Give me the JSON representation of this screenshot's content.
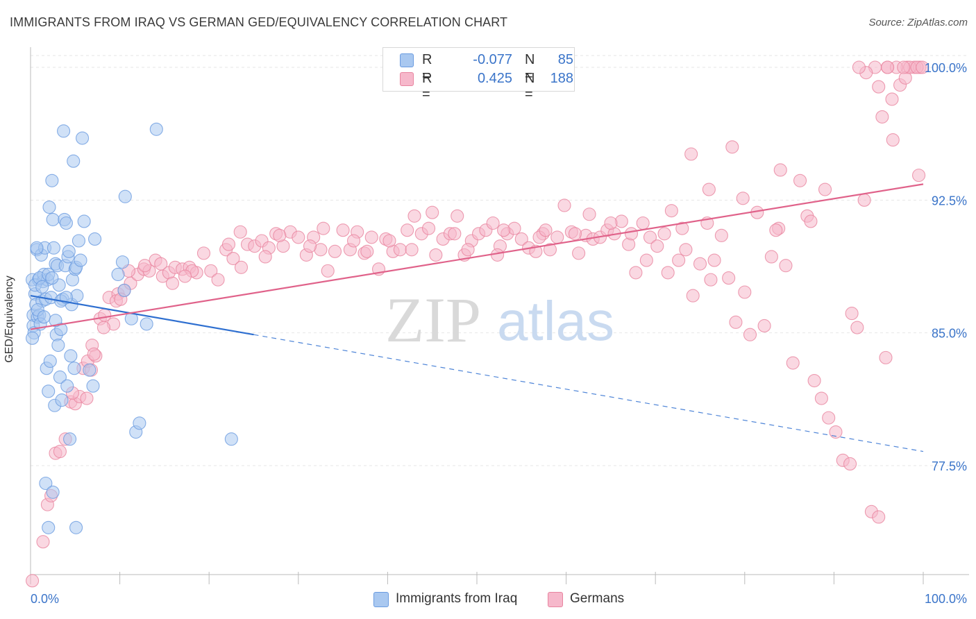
{
  "header": {
    "title": "IMMIGRANTS FROM IRAQ VS GERMAN GED/EQUIVALENCY CORRELATION CHART",
    "source": "Source: ZipAtlas.com"
  },
  "watermark": {
    "part1": "ZIP",
    "part2": "atlas"
  },
  "legend": {
    "rows": [
      {
        "r_label": "R =",
        "r_value": "-0.077",
        "n_label": "N =",
        "n_value": "85",
        "color": "#a9c8f0"
      },
      {
        "r_label": "R =",
        "r_value": "0.425",
        "n_label": "N =",
        "n_value": "188",
        "color": "#f6b8cb"
      }
    ]
  },
  "bottom_legend": [
    {
      "label": "Immigrants from Iraq",
      "color": "#a9c8f0"
    },
    {
      "label": "Germans",
      "color": "#f6b8cb"
    }
  ],
  "colors": {
    "blue_fill": "#a9c8f0",
    "blue_stroke": "#6a9be0",
    "blue_line": "#2e6fd0",
    "pink_fill": "#f6b8cb",
    "pink_stroke": "#e8849f",
    "pink_line": "#e0628a",
    "tick_label": "#3a74c9",
    "grid": "#e6e6e6"
  },
  "chart_data": {
    "type": "scatter",
    "title": "IMMIGRANTS FROM IRAQ VS GERMAN GED/EQUIVALENCY CORRELATION CHART",
    "xlabel": "",
    "ylabel": "GED/Equivalency",
    "xlim": [
      0,
      100
    ],
    "ylim": [
      70.0,
      100.5
    ],
    "x_tick_labels": [
      "0.0%",
      "100.0%"
    ],
    "y_ticks": [
      77.5,
      85.0,
      92.5,
      100.0
    ],
    "y_tick_labels": [
      "77.5%",
      "85.0%",
      "92.5%",
      "100.0%"
    ],
    "grid": true,
    "legend_position": "top-center",
    "series": [
      {
        "name": "Immigrants from Iraq",
        "points": [
          [
            0.2,
            88.0
          ],
          [
            0.3,
            86.0
          ],
          [
            0.3,
            85.4
          ],
          [
            0.4,
            85.0
          ],
          [
            0.5,
            87.2
          ],
          [
            0.6,
            86.6
          ],
          [
            0.7,
            89.7
          ],
          [
            0.8,
            85.9
          ],
          [
            0.9,
            88.0
          ],
          [
            1.0,
            86.0
          ],
          [
            1.1,
            85.5
          ],
          [
            1.2,
            89.4
          ],
          [
            1.3,
            86.8
          ],
          [
            1.4,
            87.9
          ],
          [
            1.5,
            88.3
          ],
          [
            1.6,
            89.8
          ],
          [
            1.7,
            86.9
          ],
          [
            1.8,
            83.0
          ],
          [
            1.9,
            88.0
          ],
          [
            2.0,
            81.7
          ],
          [
            2.1,
            92.1
          ],
          [
            2.2,
            83.4
          ],
          [
            2.3,
            87.0
          ],
          [
            2.4,
            93.6
          ],
          [
            2.5,
            91.4
          ],
          [
            2.6,
            89.8
          ],
          [
            2.7,
            80.9
          ],
          [
            2.8,
            88.9
          ],
          [
            2.9,
            84.9
          ],
          [
            3.0,
            88.8
          ],
          [
            3.1,
            84.3
          ],
          [
            3.3,
            82.5
          ],
          [
            3.4,
            85.2
          ],
          [
            3.5,
            81.2
          ],
          [
            3.6,
            86.9
          ],
          [
            3.7,
            96.4
          ],
          [
            3.8,
            91.4
          ],
          [
            3.9,
            88.8
          ],
          [
            4.0,
            91.2
          ],
          [
            4.1,
            82.0
          ],
          [
            4.2,
            89.3
          ],
          [
            4.3,
            89.6
          ],
          [
            4.4,
            79.0
          ],
          [
            4.5,
            83.7
          ],
          [
            4.6,
            86.6
          ],
          [
            4.7,
            88.0
          ],
          [
            4.8,
            94.7
          ],
          [
            4.9,
            83.0
          ],
          [
            5.0,
            88.6
          ],
          [
            5.1,
            88.7
          ],
          [
            5.2,
            87.1
          ],
          [
            5.4,
            90.2
          ],
          [
            5.6,
            89.1
          ],
          [
            5.8,
            96.0
          ],
          [
            6.0,
            91.3
          ],
          [
            6.6,
            82.9
          ],
          [
            7.0,
            82.0
          ],
          [
            7.2,
            90.3
          ],
          [
            9.8,
            88.3
          ],
          [
            10.3,
            89.0
          ],
          [
            10.5,
            87.4
          ],
          [
            10.6,
            92.7
          ],
          [
            11.3,
            85.8
          ],
          [
            11.8,
            79.4
          ],
          [
            12.2,
            79.9
          ],
          [
            13.0,
            85.5
          ],
          [
            14.1,
            96.5
          ],
          [
            22.5,
            79.0
          ],
          [
            1.7,
            76.5
          ],
          [
            2.5,
            76.0
          ],
          [
            2.0,
            74.0
          ],
          [
            5.1,
            74.0
          ],
          [
            0.5,
            87.7
          ],
          [
            1.0,
            88.1
          ],
          [
            1.3,
            87.6
          ],
          [
            0.8,
            86.3
          ],
          [
            2.8,
            85.7
          ],
          [
            3.2,
            87.7
          ],
          [
            0.2,
            84.7
          ],
          [
            3.4,
            86.8
          ],
          [
            2.0,
            88.3
          ],
          [
            1.5,
            85.9
          ],
          [
            0.7,
            89.8
          ],
          [
            4.0,
            87.0
          ],
          [
            2.4,
            88.1
          ]
        ]
      },
      {
        "name": "Germans",
        "points": [
          [
            0.2,
            71.0
          ],
          [
            0.8,
            70.9
          ],
          [
            1.4,
            73.2
          ],
          [
            1.9,
            75.3
          ],
          [
            2.3,
            75.8
          ],
          [
            2.8,
            78.2
          ],
          [
            3.3,
            78.3
          ],
          [
            3.9,
            79.0
          ],
          [
            4.5,
            81.1
          ],
          [
            5.0,
            81.0
          ],
          [
            5.5,
            81.4
          ],
          [
            5.9,
            83.0
          ],
          [
            6.4,
            83.4
          ],
          [
            6.9,
            84.3
          ],
          [
            7.3,
            83.7
          ],
          [
            7.8,
            85.8
          ],
          [
            8.3,
            86.0
          ],
          [
            8.8,
            87.0
          ],
          [
            9.3,
            85.5
          ],
          [
            9.8,
            87.2
          ],
          [
            10.5,
            87.4
          ],
          [
            11.2,
            87.8
          ],
          [
            12.0,
            88.3
          ],
          [
            12.7,
            88.6
          ],
          [
            13.3,
            88.5
          ],
          [
            14.0,
            89.1
          ],
          [
            14.8,
            88.2
          ],
          [
            15.5,
            88.4
          ],
          [
            16.2,
            88.7
          ],
          [
            17.0,
            88.6
          ],
          [
            17.8,
            88.7
          ],
          [
            18.6,
            88.4
          ],
          [
            19.4,
            89.5
          ],
          [
            20.2,
            88.5
          ],
          [
            21.0,
            88.0
          ],
          [
            21.9,
            89.7
          ],
          [
            22.7,
            89.2
          ],
          [
            23.5,
            90.7
          ],
          [
            24.3,
            90.0
          ],
          [
            25.1,
            89.9
          ],
          [
            25.9,
            90.2
          ],
          [
            26.7,
            89.8
          ],
          [
            27.5,
            90.6
          ],
          [
            28.3,
            89.9
          ],
          [
            29.1,
            90.7
          ],
          [
            30.0,
            90.4
          ],
          [
            30.9,
            89.4
          ],
          [
            31.7,
            90.4
          ],
          [
            32.5,
            89.7
          ],
          [
            33.3,
            88.5
          ],
          [
            34.1,
            89.6
          ],
          [
            35.0,
            90.8
          ],
          [
            35.8,
            89.7
          ],
          [
            36.6,
            90.7
          ],
          [
            37.4,
            89.5
          ],
          [
            38.2,
            90.4
          ],
          [
            39.0,
            88.6
          ],
          [
            39.8,
            90.3
          ],
          [
            40.6,
            89.6
          ],
          [
            41.4,
            89.7
          ],
          [
            42.2,
            90.8
          ],
          [
            43.0,
            91.6
          ],
          [
            43.8,
            90.6
          ],
          [
            44.6,
            90.9
          ],
          [
            45.4,
            89.4
          ],
          [
            46.2,
            90.3
          ],
          [
            47.0,
            90.6
          ],
          [
            47.8,
            91.6
          ],
          [
            48.6,
            89.4
          ],
          [
            49.4,
            90.2
          ],
          [
            50.2,
            90.6
          ],
          [
            51.0,
            90.8
          ],
          [
            51.8,
            91.2
          ],
          [
            52.6,
            89.9
          ],
          [
            53.4,
            90.6
          ],
          [
            54.2,
            90.9
          ],
          [
            55.0,
            90.3
          ],
          [
            55.8,
            89.8
          ],
          [
            56.6,
            89.6
          ],
          [
            57.4,
            90.6
          ],
          [
            58.2,
            89.7
          ],
          [
            59.0,
            90.4
          ],
          [
            59.8,
            92.2
          ],
          [
            60.6,
            90.7
          ],
          [
            61.4,
            89.5
          ],
          [
            62.2,
            90.5
          ],
          [
            63.0,
            90.3
          ],
          [
            63.8,
            90.4
          ],
          [
            64.6,
            90.8
          ],
          [
            65.4,
            90.6
          ],
          [
            66.2,
            91.3
          ],
          [
            67.0,
            90.0
          ],
          [
            67.8,
            88.4
          ],
          [
            68.6,
            91.2
          ],
          [
            69.4,
            90.4
          ],
          [
            70.2,
            89.9
          ],
          [
            71.0,
            90.6
          ],
          [
            71.8,
            91.9
          ],
          [
            72.6,
            89.1
          ],
          [
            73.4,
            89.7
          ],
          [
            74.2,
            87.1
          ],
          [
            75.0,
            88.9
          ],
          [
            75.8,
            91.2
          ],
          [
            76.6,
            89.1
          ],
          [
            77.4,
            90.5
          ],
          [
            78.2,
            88.1
          ],
          [
            79.0,
            85.6
          ],
          [
            79.8,
            92.6
          ],
          [
            80.6,
            84.9
          ],
          [
            81.4,
            91.8
          ],
          [
            82.2,
            85.4
          ],
          [
            83.0,
            89.3
          ],
          [
            83.8,
            90.9
          ],
          [
            84.6,
            88.8
          ],
          [
            85.4,
            83.3
          ],
          [
            86.2,
            93.6
          ],
          [
            87.0,
            91.6
          ],
          [
            87.8,
            82.3
          ],
          [
            88.6,
            81.3
          ],
          [
            89.4,
            80.2
          ],
          [
            90.2,
            79.4
          ],
          [
            91.0,
            77.8
          ],
          [
            91.8,
            77.6
          ],
          [
            92.6,
            85.3
          ],
          [
            93.4,
            92.5
          ],
          [
            94.2,
            74.9
          ],
          [
            95.0,
            74.6
          ],
          [
            95.8,
            83.6
          ],
          [
            96.6,
            95.9
          ],
          [
            97.4,
            99.0
          ],
          [
            98.2,
            100.0
          ],
          [
            99.0,
            100.0
          ],
          [
            99.6,
            100.0
          ],
          [
            74.0,
            95.1
          ],
          [
            76.0,
            93.1
          ],
          [
            80.0,
            87.3
          ],
          [
            84.0,
            94.2
          ],
          [
            89.0,
            93.1
          ],
          [
            96.0,
            100.0
          ],
          [
            97.0,
            100.0
          ],
          [
            99.5,
            93.9
          ],
          [
            95.0,
            98.9
          ],
          [
            96.5,
            98.2
          ],
          [
            98.0,
            99.4
          ],
          [
            96.0,
            100.0
          ],
          [
            98.5,
            100.0
          ],
          [
            99.3,
            100.0
          ],
          [
            12.8,
            88.8
          ],
          [
            14.6,
            88.9
          ],
          [
            18.1,
            88.5
          ],
          [
            22.2,
            90.0
          ],
          [
            26.3,
            89.3
          ],
          [
            31.3,
            89.9
          ],
          [
            36.2,
            90.2
          ],
          [
            40.2,
            90.2
          ],
          [
            45.0,
            91.8
          ],
          [
            49.0,
            89.7
          ],
          [
            53.0,
            90.8
          ],
          [
            57.0,
            90.4
          ],
          [
            61.0,
            90.6
          ],
          [
            65.0,
            91.2
          ],
          [
            69.0,
            89.1
          ],
          [
            73.0,
            90.9
          ],
          [
            6.3,
            81.3
          ],
          [
            8.2,
            85.3
          ],
          [
            6.8,
            82.9
          ],
          [
            4.7,
            81.6
          ],
          [
            9.6,
            86.8
          ],
          [
            11.0,
            88.5
          ],
          [
            10.1,
            86.9
          ],
          [
            7.1,
            83.8
          ],
          [
            15.9,
            87.8
          ],
          [
            17.3,
            88.2
          ],
          [
            23.6,
            88.7
          ],
          [
            27.9,
            90.5
          ],
          [
            32.8,
            90.9
          ],
          [
            37.7,
            89.6
          ],
          [
            42.7,
            89.7
          ],
          [
            47.5,
            90.6
          ],
          [
            52.3,
            89.4
          ],
          [
            57.7,
            90.8
          ],
          [
            62.6,
            91.7
          ],
          [
            67.3,
            90.6
          ],
          [
            71.4,
            88.4
          ],
          [
            76.2,
            88.0
          ],
          [
            78.6,
            95.5
          ],
          [
            83.5,
            90.8
          ],
          [
            87.4,
            91.3
          ],
          [
            92.0,
            86.1
          ],
          [
            95.4,
            97.2
          ],
          [
            97.8,
            100.0
          ],
          [
            99.9,
            100.0
          ],
          [
            94.6,
            100.0
          ],
          [
            93.6,
            99.7
          ],
          [
            92.8,
            100.0
          ]
        ]
      }
    ],
    "trend_lines": [
      {
        "series": "Immigrants from Iraq",
        "solid_x": [
          0,
          25
        ],
        "solid_y": [
          87.1,
          84.9
        ],
        "dashed_x": [
          25,
          100
        ],
        "dashed_y": [
          84.9,
          78.3
        ]
      },
      {
        "series": "Germans",
        "x": [
          0,
          100
        ],
        "y": [
          85.2,
          93.4
        ]
      }
    ]
  }
}
